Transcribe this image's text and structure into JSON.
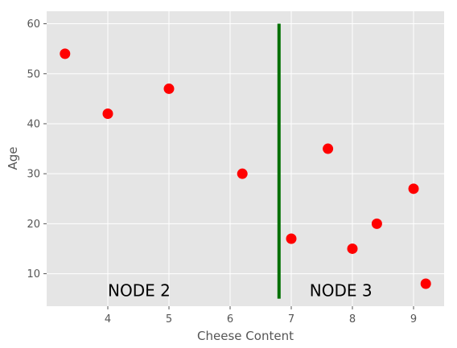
{
  "chart_data": {
    "type": "scatter",
    "title": "",
    "xlabel": "Cheese Content",
    "ylabel": "Age",
    "xlim": [
      3.0,
      9.5
    ],
    "ylim": [
      3.5,
      62.5
    ],
    "x_ticks": [
      4,
      5,
      6,
      7,
      8,
      9
    ],
    "y_ticks": [
      10,
      20,
      30,
      40,
      50,
      60
    ],
    "grid": true,
    "background_color": "#e5e5e5",
    "grid_color": "#ffffff",
    "series": [
      {
        "color": "#ff0000",
        "points": [
          {
            "x": 3.3,
            "y": 54
          },
          {
            "x": 4.0,
            "y": 42
          },
          {
            "x": 5.0,
            "y": 47
          },
          {
            "x": 6.2,
            "y": 30
          },
          {
            "x": 7.0,
            "y": 17
          },
          {
            "x": 7.6,
            "y": 35
          },
          {
            "x": 8.0,
            "y": 15
          },
          {
            "x": 8.4,
            "y": 20
          },
          {
            "x": 9.0,
            "y": 27
          },
          {
            "x": 9.2,
            "y": 8
          }
        ]
      }
    ],
    "split_line": {
      "x": 6.8,
      "y_from": 5,
      "y_to": 60,
      "color": "#007000"
    },
    "annotations": [
      {
        "text": "NODE 2",
        "x": 4.0,
        "y": 5.5
      },
      {
        "text": "NODE 3",
        "x": 7.3,
        "y": 5.5
      }
    ]
  }
}
